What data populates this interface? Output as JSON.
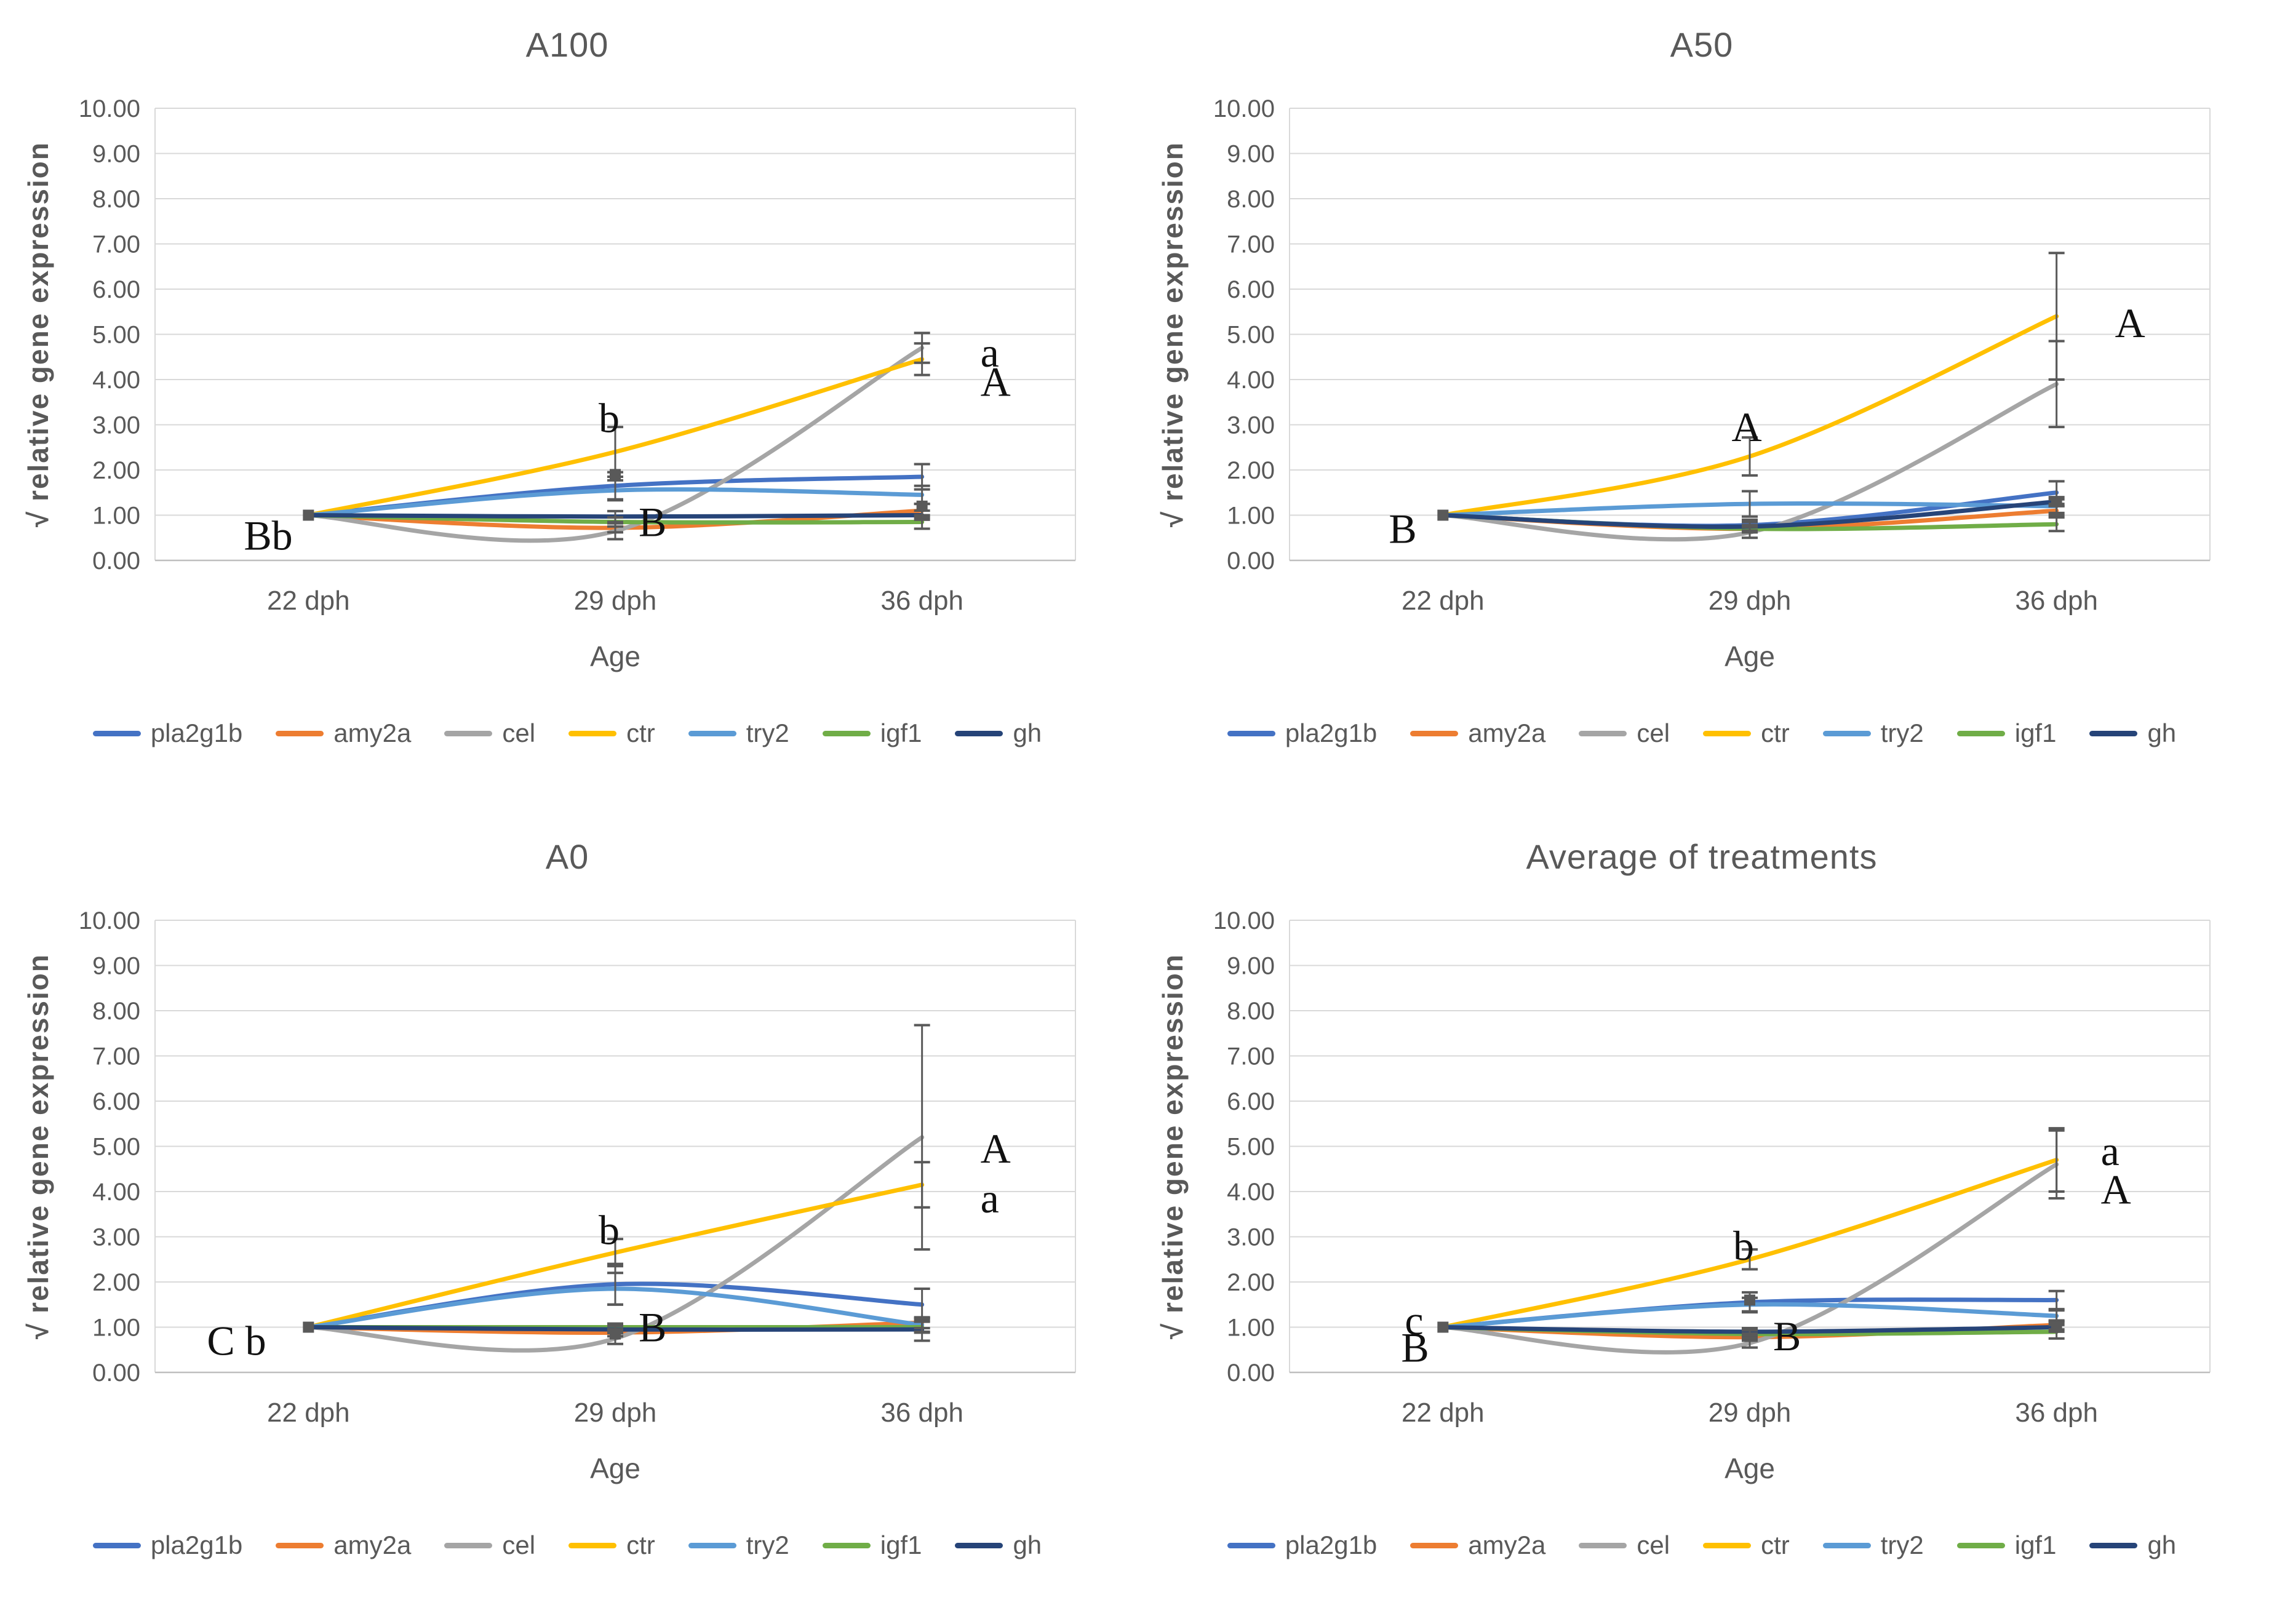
{
  "page": {
    "background": "#ffffff"
  },
  "axis_style": {
    "grid_color": "#D9D9D9",
    "axis_line_color": "#BFBFBF",
    "tick_text_color": "#595959",
    "error_bar_color": "#595959",
    "annotation_color": "#111111"
  },
  "chart_data": [
    {
      "id": "a100",
      "type": "line",
      "title": "A100",
      "xlabel": "Age",
      "ylabel": "√ relative gene expression",
      "categories": [
        "22 dph",
        "29 dph",
        "36 dph"
      ],
      "ylim": [
        0,
        10
      ],
      "ytick_step": 1,
      "ytick_decimals": 2,
      "grid": true,
      "legend_position": "bottom",
      "series": [
        {
          "name": "pla2g1b",
          "color": "#4472C4",
          "values": [
            1.0,
            1.65,
            1.85
          ],
          "err": [
            0,
            0.3,
            0.28
          ]
        },
        {
          "name": "amy2a",
          "color": "#ED7D31",
          "values": [
            1.0,
            0.72,
            1.1
          ],
          "err": [
            0,
            0.1,
            0.15
          ]
        },
        {
          "name": "cel",
          "color": "#A5A5A5",
          "values": [
            1.0,
            0.65,
            4.7
          ],
          "err": [
            0,
            0.18,
            0.33
          ]
        },
        {
          "name": "ctr",
          "color": "#FFC000",
          "values": [
            1.0,
            2.4,
            4.45
          ],
          "err": [
            0,
            0.55,
            0.35
          ]
        },
        {
          "name": "try2",
          "color": "#5B9BD5",
          "values": [
            1.0,
            1.55,
            1.45
          ],
          "err": [
            0,
            0.22,
            0.2
          ]
        },
        {
          "name": "igf1",
          "color": "#70AD47",
          "values": [
            1.0,
            0.85,
            0.85
          ],
          "err": [
            0,
            0.1,
            0.15
          ]
        },
        {
          "name": "gh",
          "color": "#264478",
          "values": [
            1.0,
            0.97,
            1.0
          ],
          "err": [
            0,
            0.12,
            0.1
          ]
        }
      ],
      "annotations": [
        {
          "text": "Bb",
          "xi": 0,
          "dx": -105,
          "y": 0.55
        },
        {
          "text": "b",
          "xi": 1,
          "dx": -10,
          "y": 3.15
        },
        {
          "text": "B",
          "xi": 1,
          "dx": 38,
          "y": 0.85
        },
        {
          "text": "a",
          "xi": 2,
          "dx": 95,
          "y": 4.6
        },
        {
          "text": "A",
          "xi": 2,
          "dx": 95,
          "y": 3.95
        }
      ],
      "markers": [
        {
          "xi": 0,
          "y": 1.0
        },
        {
          "xi": 1,
          "y": 1.9
        },
        {
          "xi": 2,
          "y": 1.2
        }
      ]
    },
    {
      "id": "a50",
      "type": "line",
      "title": "A50",
      "xlabel": "Age",
      "ylabel": "√ relative gene expression",
      "categories": [
        "22 dph",
        "29 dph",
        "36 dph"
      ],
      "ylim": [
        0,
        10
      ],
      "ytick_step": 1,
      "ytick_decimals": 2,
      "grid": true,
      "legend_position": "bottom",
      "series": [
        {
          "name": "pla2g1b",
          "color": "#4472C4",
          "values": [
            1.0,
            0.78,
            1.5
          ],
          "err": [
            0,
            0.12,
            0.25
          ]
        },
        {
          "name": "amy2a",
          "color": "#ED7D31",
          "values": [
            1.0,
            0.7,
            1.1
          ],
          "err": [
            0,
            0.08,
            0.1
          ]
        },
        {
          "name": "cel",
          "color": "#A5A5A5",
          "values": [
            1.0,
            0.62,
            3.9
          ],
          "err": [
            0,
            0.12,
            0.95
          ]
        },
        {
          "name": "ctr",
          "color": "#FFC000",
          "values": [
            1.0,
            2.3,
            5.4
          ],
          "err": [
            0,
            0.42,
            1.4
          ]
        },
        {
          "name": "try2",
          "color": "#5B9BD5",
          "values": [
            1.0,
            1.25,
            1.2
          ],
          "err": [
            0,
            0.28,
            0.15
          ]
        },
        {
          "name": "igf1",
          "color": "#70AD47",
          "values": [
            1.0,
            0.7,
            0.8
          ],
          "err": [
            0,
            0.08,
            0.15
          ]
        },
        {
          "name": "gh",
          "color": "#264478",
          "values": [
            1.0,
            0.75,
            1.3
          ],
          "err": [
            0,
            0.1,
            0.1
          ]
        }
      ],
      "annotations": [
        {
          "text": "B",
          "xi": 0,
          "dx": -88,
          "y": 0.7
        },
        {
          "text": "A",
          "xi": 1,
          "dx": -5,
          "y": 2.95
        },
        {
          "text": "A",
          "xi": 2,
          "dx": 95,
          "y": 5.25
        }
      ],
      "markers": [
        {
          "xi": 0,
          "y": 1.0
        },
        {
          "xi": 2,
          "y": 1.3
        }
      ]
    },
    {
      "id": "a0",
      "type": "line",
      "title": "A0",
      "xlabel": "Age",
      "ylabel": "√ relative gene expression",
      "categories": [
        "22 dph",
        "29 dph",
        "36 dph"
      ],
      "ylim": [
        0,
        10
      ],
      "ytick_step": 1,
      "ytick_decimals": 2,
      "grid": true,
      "legend_position": "bottom",
      "series": [
        {
          "name": "pla2g1b",
          "color": "#4472C4",
          "values": [
            1.0,
            1.95,
            1.5
          ],
          "err": [
            0,
            0.45,
            0.35
          ]
        },
        {
          "name": "amy2a",
          "color": "#ED7D31",
          "values": [
            1.0,
            0.88,
            1.1
          ],
          "err": [
            0,
            0.08,
            0.12
          ]
        },
        {
          "name": "cel",
          "color": "#A5A5A5",
          "values": [
            1.0,
            0.75,
            5.2
          ],
          "err": [
            0,
            0.12,
            2.48
          ]
        },
        {
          "name": "ctr",
          "color": "#FFC000",
          "values": [
            1.0,
            2.65,
            4.15
          ],
          "err": [
            0,
            0.3,
            0.5
          ]
        },
        {
          "name": "try2",
          "color": "#5B9BD5",
          "values": [
            1.0,
            1.85,
            1.05
          ],
          "err": [
            0,
            0.35,
            0.15
          ]
        },
        {
          "name": "igf1",
          "color": "#70AD47",
          "values": [
            1.0,
            1.0,
            1.0
          ],
          "err": [
            0,
            0.08,
            0.12
          ]
        },
        {
          "name": "gh",
          "color": "#264478",
          "values": [
            1.0,
            0.95,
            0.95
          ],
          "err": [
            0,
            0.08,
            0.25
          ]
        }
      ],
      "annotations": [
        {
          "text": "C b",
          "xi": 0,
          "dx": -165,
          "y": 0.7
        },
        {
          "text": "b",
          "xi": 1,
          "dx": -10,
          "y": 3.15
        },
        {
          "text": "B",
          "xi": 1,
          "dx": 38,
          "y": 1.0
        },
        {
          "text": "A",
          "xi": 2,
          "dx": 95,
          "y": 4.95
        },
        {
          "text": "a",
          "xi": 2,
          "dx": 95,
          "y": 3.85
        }
      ],
      "markers": [
        {
          "xi": 0,
          "y": 1.0
        },
        {
          "xi": 1,
          "y": 0.85
        }
      ]
    },
    {
      "id": "avg",
      "type": "line",
      "title": "Average of treatments",
      "xlabel": "Age",
      "ylabel": "√ relative gene expression",
      "categories": [
        "22 dph",
        "29 dph",
        "36 dph"
      ],
      "ylim": [
        0,
        10
      ],
      "ytick_step": 1,
      "ytick_decimals": 2,
      "grid": true,
      "legend_position": "bottom",
      "series": [
        {
          "name": "pla2g1b",
          "color": "#4472C4",
          "values": [
            1.0,
            1.55,
            1.6
          ],
          "err": [
            0,
            0.22,
            0.2
          ]
        },
        {
          "name": "amy2a",
          "color": "#ED7D31",
          "values": [
            1.0,
            0.78,
            1.05
          ],
          "err": [
            0,
            0.08,
            0.1
          ]
        },
        {
          "name": "cel",
          "color": "#A5A5A5",
          "values": [
            1.0,
            0.65,
            4.6
          ],
          "err": [
            0,
            0.1,
            0.75
          ]
        },
        {
          "name": "ctr",
          "color": "#FFC000",
          "values": [
            1.0,
            2.5,
            4.7
          ],
          "err": [
            0,
            0.22,
            0.7
          ]
        },
        {
          "name": "try2",
          "color": "#5B9BD5",
          "values": [
            1.0,
            1.5,
            1.25
          ],
          "err": [
            0,
            0.15,
            0.12
          ]
        },
        {
          "name": "igf1",
          "color": "#70AD47",
          "values": [
            1.0,
            0.85,
            0.9
          ],
          "err": [
            0,
            0.08,
            0.15
          ]
        },
        {
          "name": "gh",
          "color": "#264478",
          "values": [
            1.0,
            0.9,
            1.0
          ],
          "err": [
            0,
            0.08,
            0.1
          ]
        }
      ],
      "annotations": [
        {
          "text": "c",
          "xi": 0,
          "dx": -62,
          "y": 1.15
        },
        {
          "text": "B",
          "xi": 0,
          "dx": -68,
          "y": 0.55
        },
        {
          "text": "b",
          "xi": 1,
          "dx": -10,
          "y": 2.8
        },
        {
          "text": "B",
          "xi": 1,
          "dx": 38,
          "y": 0.8
        },
        {
          "text": "a",
          "xi": 2,
          "dx": 72,
          "y": 4.9
        },
        {
          "text": "A",
          "xi": 2,
          "dx": 72,
          "y": 4.05
        }
      ],
      "markers": [
        {
          "xi": 0,
          "y": 1.0
        },
        {
          "xi": 1,
          "y": 1.6
        },
        {
          "xi": 2,
          "y": 1.0
        }
      ]
    }
  ]
}
